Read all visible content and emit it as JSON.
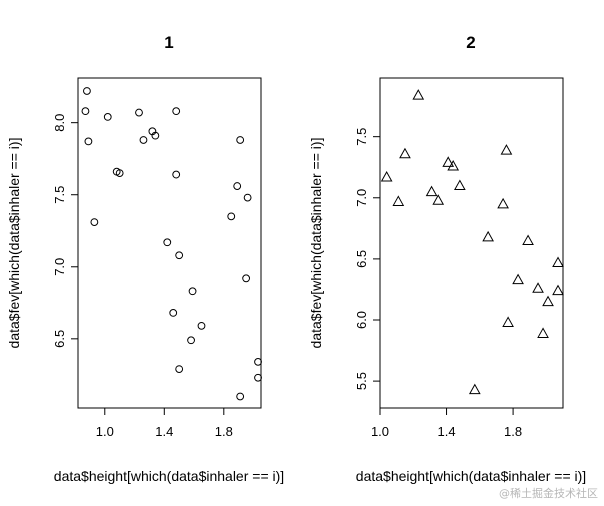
{
  "watermark": "@稀土掘金技术社区",
  "chart_data": [
    {
      "type": "scatter",
      "title": "1",
      "marker": "circle",
      "xlabel": "data$height[which(data$inhaler == i)]",
      "ylabel": "data$fev[which(data$inhaler == i)]",
      "xlim": [
        0.82,
        2.05
      ],
      "ylim": [
        6.02,
        8.31
      ],
      "xticks": [
        1.0,
        1.4,
        1.8
      ],
      "xtick_labels": [
        "1.0",
        "1.4",
        "1.8"
      ],
      "yticks": [
        6.5,
        7.0,
        7.5,
        8.0
      ],
      "ytick_labels": [
        "6.5",
        "7.0",
        "7.5",
        "8.0"
      ],
      "x": [
        0.88,
        0.87,
        0.89,
        0.93,
        1.02,
        1.08,
        1.1,
        1.23,
        1.26,
        1.32,
        1.34,
        1.48,
        1.48,
        1.42,
        1.5,
        1.46,
        1.59,
        1.58,
        1.65,
        1.5,
        1.85,
        1.89,
        1.91,
        1.96,
        1.95,
        2.03,
        2.03,
        1.91
      ],
      "y": [
        8.22,
        8.08,
        7.87,
        7.31,
        8.04,
        7.66,
        7.65,
        8.07,
        7.88,
        7.94,
        7.91,
        8.08,
        7.64,
        7.17,
        7.08,
        6.68,
        6.83,
        6.49,
        6.59,
        6.29,
        7.35,
        7.56,
        7.88,
        7.48,
        6.92,
        6.34,
        6.23,
        6.1
      ]
    },
    {
      "type": "scatter",
      "title": "2",
      "marker": "triangle",
      "xlabel": "data$height[which(data$inhaler == i)]",
      "ylabel": "data$fev[which(data$inhaler == i)]",
      "xlim": [
        1.0,
        2.1
      ],
      "ylim": [
        5.28,
        7.98
      ],
      "xticks": [
        1.0,
        1.4,
        1.8
      ],
      "xtick_labels": [
        "1.0",
        "1.4",
        "1.8"
      ],
      "yticks": [
        5.5,
        6.0,
        6.5,
        7.0,
        7.5
      ],
      "ytick_labels": [
        "5.5",
        "6.0",
        "6.5",
        "7.0",
        "7.5"
      ],
      "x": [
        1.04,
        1.11,
        1.15,
        1.23,
        1.31,
        1.35,
        1.41,
        1.44,
        1.48,
        1.57,
        1.65,
        1.74,
        1.76,
        1.77,
        1.83,
        1.89,
        1.95,
        1.98,
        2.01,
        2.07,
        2.07
      ],
      "y": [
        7.17,
        6.97,
        7.36,
        7.84,
        7.05,
        6.98,
        7.29,
        7.26,
        7.1,
        5.43,
        6.68,
        6.95,
        7.39,
        5.98,
        6.33,
        6.65,
        6.26,
        5.89,
        6.15,
        6.24,
        6.47
      ]
    }
  ]
}
